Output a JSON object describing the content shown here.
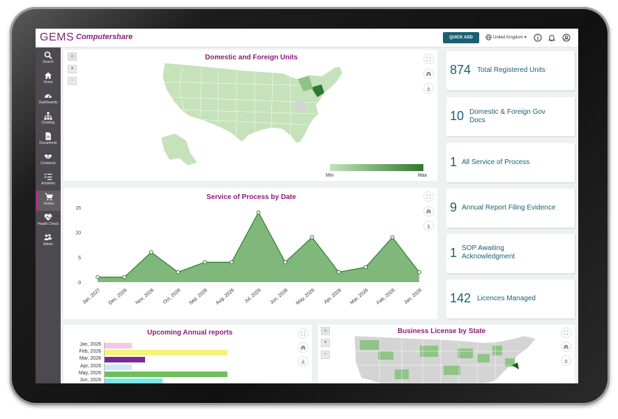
{
  "header": {
    "logo_gems": "GEMS",
    "logo_cs": "Computershare",
    "quick_add": "QUICK ADD",
    "region": "United Kingdom"
  },
  "sidebar": {
    "items": [
      {
        "label": "Search",
        "icon": "search-icon"
      },
      {
        "label": "Home",
        "icon": "home-icon"
      },
      {
        "label": "Dashboards",
        "icon": "dashboard-icon"
      },
      {
        "label": "Charting",
        "icon": "org-chart-icon"
      },
      {
        "label": "Documents",
        "icon": "document-icon"
      },
      {
        "label": "Contracts",
        "icon": "handshake-icon"
      },
      {
        "label": "Activities",
        "icon": "checklist-icon"
      },
      {
        "label": "Orders",
        "icon": "cart-icon"
      },
      {
        "label": "Health Check",
        "icon": "heart-pulse-icon"
      },
      {
        "label": "Admin",
        "icon": "users-gear-icon"
      }
    ],
    "active": "Orders"
  },
  "panels": {
    "domestic_map": {
      "title": "Domestic and Foreign Units",
      "legend_min": "Min",
      "legend_max": "Max"
    },
    "service_chart": {
      "title": "Service of Process by Date"
    },
    "annual_reports": {
      "title": "Upcoming Annual reports"
    },
    "license_map": {
      "title": "Business License by State"
    }
  },
  "map_controls": {
    "home": "⌂",
    "zoom_in": "+",
    "zoom_out": "-"
  },
  "stats": [
    {
      "value": "874",
      "label": "Total Registered Units"
    },
    {
      "value": "10",
      "label_line1": "Domestic & Foreign Gov",
      "label_line2": "Docs"
    },
    {
      "value": "1",
      "label": "All Service of Process"
    },
    {
      "value": "9",
      "label": "Annual Report Filing Evidence"
    },
    {
      "value": "1",
      "label_line1": "SOP Awaiting",
      "label_line2": "Acknowledgment"
    },
    {
      "value": "142",
      "label": "Licences Managed"
    }
  ],
  "colors": {
    "accent_purple": "#8b1c7c",
    "teal": "#1b5f73",
    "chart_fill": "#6aaa64",
    "chart_line": "#2f7d2a"
  },
  "chart_data": [
    {
      "type": "area",
      "title": "Service of Process by Date",
      "categories": [
        "Jan, 2027",
        "Dec, 2026",
        "Nov, 2026",
        "Oct, 2026",
        "Sep, 2026",
        "Aug, 2026",
        "Jul, 2026",
        "Jun, 2026",
        "May, 2026",
        "Apr, 2026",
        "Mar, 2026",
        "Feb, 2026",
        "Jan, 2026"
      ],
      "values": [
        1,
        1,
        6,
        2,
        4,
        4,
        14,
        4,
        9,
        2,
        3,
        9,
        2
      ],
      "yticks": [
        0,
        5,
        10,
        15
      ],
      "ylim": [
        0,
        15
      ]
    },
    {
      "type": "bar",
      "orientation": "horizontal",
      "title": "Upcoming Annual reports",
      "categories": [
        "Jan, 2026",
        "Feb, 2026",
        "Mar, 2026",
        "Apr, 2026",
        "May, 2026",
        "Jun, 2026"
      ],
      "values": [
        0.22,
        1.0,
        0.33,
        0.22,
        1.0,
        0.47
      ],
      "colors": [
        "#f7c6e3",
        "#f4f37a",
        "#7b2a8e",
        "#c9ecf4",
        "#6fbf5d",
        "#7ee6e6"
      ]
    }
  ]
}
